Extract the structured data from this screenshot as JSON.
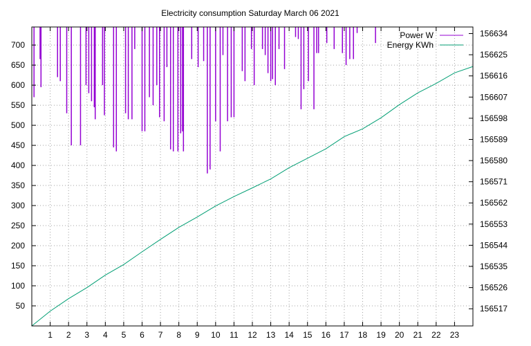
{
  "chart_data": {
    "type": "line",
    "title": "Electricity consumption Saturday March 06 2021",
    "xlabel": "",
    "ylabel": "",
    "y2label": "",
    "xlim": [
      0,
      24
    ],
    "x_ticks": [
      1,
      2,
      3,
      4,
      5,
      6,
      7,
      8,
      9,
      10,
      11,
      12,
      13,
      14,
      15,
      16,
      17,
      18,
      19,
      20,
      21,
      22,
      23
    ],
    "ylim": [
      0,
      745
    ],
    "y_ticks": [
      50,
      100,
      150,
      200,
      250,
      300,
      350,
      400,
      450,
      500,
      550,
      600,
      650,
      700
    ],
    "y2lim": [
      156509.7,
      156636.8
    ],
    "y2_ticks": [
      156517,
      156526,
      156535,
      156544,
      156553,
      156562,
      156571,
      156580,
      156589,
      156598,
      156607,
      156616,
      156625,
      156634
    ],
    "grid": true,
    "legend_position": "top-right",
    "colors": {
      "power": "#9400d3",
      "energy": "#009e73",
      "axis": "#000000",
      "grid": "#a0a0a0"
    },
    "series": [
      {
        "name": "Power W",
        "axis": "left",
        "style": "impulses",
        "base_level": 745,
        "spikes": [
          [
            0.12,
            570
          ],
          [
            0.45,
            665
          ],
          [
            0.5,
            595
          ],
          [
            1.4,
            620
          ],
          [
            1.55,
            610
          ],
          [
            1.9,
            530
          ],
          [
            2.15,
            450
          ],
          [
            2.65,
            450
          ],
          [
            2.95,
            600
          ],
          [
            3.1,
            580
          ],
          [
            3.25,
            560
          ],
          [
            3.4,
            545
          ],
          [
            3.45,
            515
          ],
          [
            3.85,
            600
          ],
          [
            3.95,
            525
          ],
          [
            4.45,
            445
          ],
          [
            4.6,
            435
          ],
          [
            5.1,
            530
          ],
          [
            5.25,
            515
          ],
          [
            5.45,
            515
          ],
          [
            5.6,
            690
          ],
          [
            6.0,
            485
          ],
          [
            6.15,
            485
          ],
          [
            6.4,
            570
          ],
          [
            6.6,
            550
          ],
          [
            6.8,
            600
          ],
          [
            6.95,
            520
          ],
          [
            7.2,
            510
          ],
          [
            7.35,
            645
          ],
          [
            7.55,
            440
          ],
          [
            7.7,
            435
          ],
          [
            7.95,
            435
          ],
          [
            8.1,
            480
          ],
          [
            8.2,
            485
          ],
          [
            8.25,
            435
          ],
          [
            8.7,
            665
          ],
          [
            9.05,
            645
          ],
          [
            9.35,
            660
          ],
          [
            9.55,
            380
          ],
          [
            9.7,
            390
          ],
          [
            10.0,
            510
          ],
          [
            10.25,
            435
          ],
          [
            10.4,
            675
          ],
          [
            10.65,
            510
          ],
          [
            10.85,
            520
          ],
          [
            11.0,
            520
          ],
          [
            11.45,
            635
          ],
          [
            11.6,
            610
          ],
          [
            11.95,
            690
          ],
          [
            12.1,
            600
          ],
          [
            12.55,
            690
          ],
          [
            12.7,
            675
          ],
          [
            12.85,
            630
          ],
          [
            13.0,
            610
          ],
          [
            13.1,
            615
          ],
          [
            13.25,
            600
          ],
          [
            13.45,
            690
          ],
          [
            13.75,
            640
          ],
          [
            14.35,
            720
          ],
          [
            14.5,
            715
          ],
          [
            14.65,
            540
          ],
          [
            14.8,
            590
          ],
          [
            15.05,
            610
          ],
          [
            15.35,
            540
          ],
          [
            15.5,
            680
          ],
          [
            15.6,
            680
          ],
          [
            16.05,
            705
          ],
          [
            16.45,
            690
          ],
          [
            16.9,
            680
          ],
          [
            17.1,
            650
          ],
          [
            17.3,
            665
          ],
          [
            17.5,
            665
          ],
          [
            17.7,
            730
          ],
          [
            18.7,
            705
          ]
        ]
      },
      {
        "name": "Energy KWh",
        "axis": "right",
        "style": "line",
        "points": [
          [
            0,
            156509.7
          ],
          [
            1,
            156516.0
          ],
          [
            2,
            156521.3
          ],
          [
            3,
            156526.0
          ],
          [
            4,
            156531.3
          ],
          [
            5,
            156535.8
          ],
          [
            6,
            156541.2
          ],
          [
            7,
            156546.5
          ],
          [
            8,
            156551.6
          ],
          [
            9,
            156556.0
          ],
          [
            10,
            156560.7
          ],
          [
            11,
            156564.7
          ],
          [
            12,
            156568.4
          ],
          [
            13,
            156572.2
          ],
          [
            14,
            156577.0
          ],
          [
            15,
            156581.0
          ],
          [
            16,
            156585.0
          ],
          [
            17,
            156590.2
          ],
          [
            18,
            156593.5
          ],
          [
            19,
            156598.2
          ],
          [
            20,
            156603.8
          ],
          [
            21,
            156608.8
          ],
          [
            22,
            156612.8
          ],
          [
            23,
            156617.3
          ],
          [
            24,
            156620.0
          ]
        ]
      }
    ]
  }
}
